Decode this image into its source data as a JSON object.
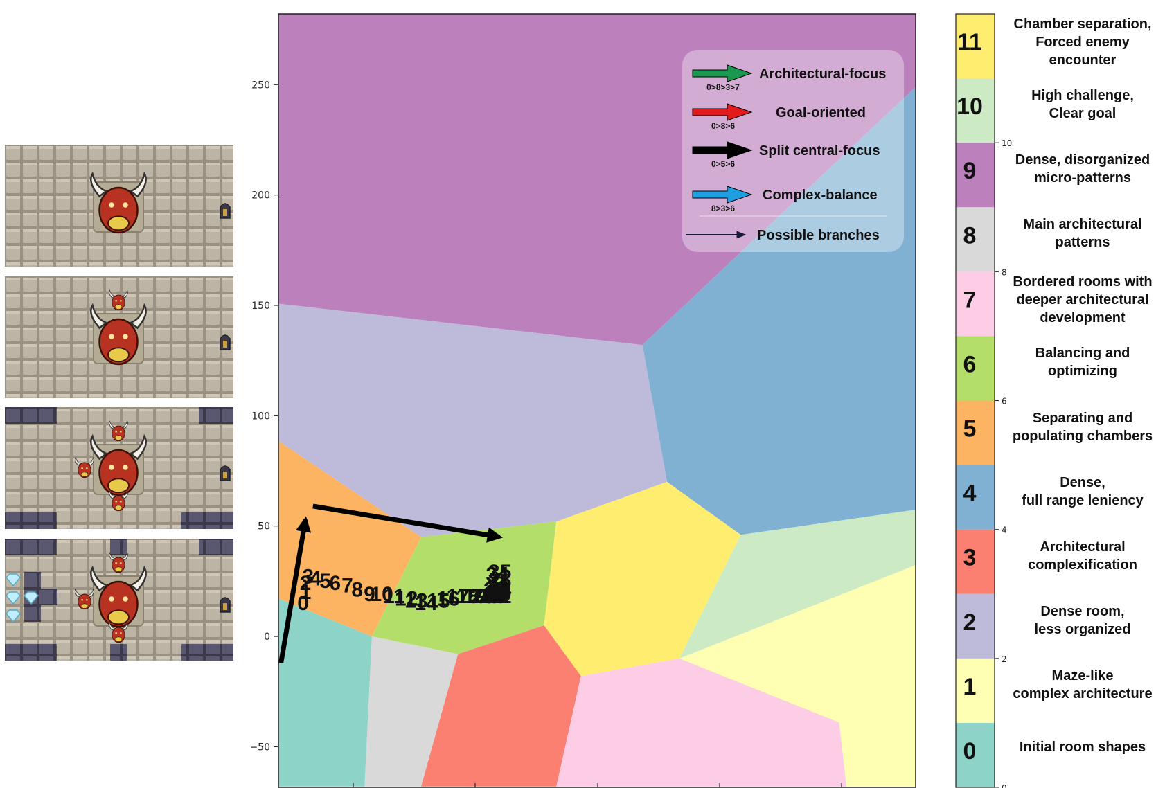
{
  "colors": {
    "cluster": [
      "#8dd3c7",
      "#ffffb3",
      "#bebada",
      "#fb8072",
      "#80b1d3",
      "#fdb462",
      "#b3de69",
      "#fccde5",
      "#d9d9d9",
      "#bc80bd",
      "#ccebc5",
      "#ffed6f"
    ],
    "arrows": {
      "architectural": "#1a9850",
      "goal": "#e31a1c",
      "split": "#000000",
      "complex": "#1f9ee0",
      "branch": "#1a1a3a"
    }
  },
  "thumbnails": [
    {
      "icons": [
        "boss-minotaur",
        "exit-door"
      ]
    },
    {
      "icons": [
        "boss-minotaur",
        "minotaur-enemy",
        "exit-door"
      ]
    },
    {
      "icons": [
        "boss-minotaur",
        "minotaur-enemy",
        "minotaur-enemy",
        "minotaur-enemy",
        "exit-door",
        "wall-blocks"
      ]
    },
    {
      "icons": [
        "boss-minotaur",
        "minotaur-enemy",
        "minotaur-enemy",
        "minotaur-enemy",
        "exit-door",
        "wall-blocks",
        "diamond-gem"
      ]
    }
  ],
  "chart_data": {
    "type": "scatter",
    "y_ticks": [
      "250",
      "200",
      "150",
      "100",
      "50",
      "0",
      "−50"
    ],
    "ylim": [
      -68,
      283
    ],
    "regions": [
      {
        "cluster": 9,
        "polygon": [
          [
            -20,
            283
          ],
          [
            245,
            283
          ],
          [
            245,
            253
          ],
          [
            130,
            132
          ],
          [
            -20,
            151
          ]
        ]
      },
      {
        "cluster": 4,
        "polygon": [
          [
            130,
            132
          ],
          [
            245,
            253
          ],
          [
            245,
            58
          ],
          [
            170,
            46
          ],
          [
            140,
            70
          ]
        ]
      },
      {
        "cluster": 2,
        "polygon": [
          [
            -20,
            151
          ],
          [
            130,
            132
          ],
          [
            140,
            70
          ],
          [
            95,
            52
          ],
          [
            40,
            45
          ],
          [
            -20,
            90
          ]
        ]
      },
      {
        "cluster": 5,
        "polygon": [
          [
            -20,
            90
          ],
          [
            40,
            45
          ],
          [
            20,
            0
          ],
          [
            -20,
            18
          ]
        ]
      },
      {
        "cluster": 6,
        "polygon": [
          [
            40,
            45
          ],
          [
            95,
            52
          ],
          [
            90,
            5
          ],
          [
            55,
            -8
          ],
          [
            20,
            0
          ]
        ]
      },
      {
        "cluster": 11,
        "polygon": [
          [
            95,
            52
          ],
          [
            140,
            70
          ],
          [
            170,
            46
          ],
          [
            145,
            -10
          ],
          [
            105,
            -18
          ],
          [
            90,
            5
          ]
        ]
      },
      {
        "cluster": 10,
        "polygon": [
          [
            170,
            46
          ],
          [
            245,
            58
          ],
          [
            245,
            34
          ],
          [
            210,
            -39
          ],
          [
            145,
            -10
          ]
        ]
      },
      {
        "cluster": 0,
        "polygon": [
          [
            -20,
            18
          ],
          [
            20,
            0
          ],
          [
            17,
            -68
          ],
          [
            -20,
            -68
          ]
        ]
      },
      {
        "cluster": 8,
        "polygon": [
          [
            20,
            0
          ],
          [
            55,
            -8
          ],
          [
            40,
            -68
          ],
          [
            17,
            -68
          ]
        ]
      },
      {
        "cluster": 3,
        "polygon": [
          [
            55,
            -8
          ],
          [
            90,
            5
          ],
          [
            105,
            -18
          ],
          [
            95,
            -68
          ],
          [
            40,
            -68
          ]
        ]
      },
      {
        "cluster": 7,
        "polygon": [
          [
            105,
            -18
          ],
          [
            145,
            -10
          ],
          [
            210,
            -39
          ],
          [
            213,
            -68
          ],
          [
            95,
            -68
          ]
        ]
      },
      {
        "cluster": 1,
        "polygon": [
          [
            145,
            -10
          ],
          [
            245,
            34
          ],
          [
            245,
            -68
          ],
          [
            213,
            -68
          ],
          [
            210,
            -39
          ]
        ]
      }
    ],
    "point_labels": [
      {
        "t": "0",
        "x": -8,
        "y": 12
      },
      {
        "t": "1",
        "x": -7,
        "y": 17
      },
      {
        "t": "2",
        "x": -7,
        "y": 21
      },
      {
        "t": "3",
        "x": -6,
        "y": 24
      },
      {
        "t": "4",
        "x": -3,
        "y": 23
      },
      {
        "t": "5",
        "x": 1,
        "y": 22
      },
      {
        "t": "6",
        "x": 5,
        "y": 21
      },
      {
        "t": "7",
        "x": 10,
        "y": 20
      },
      {
        "t": "8",
        "x": 14,
        "y": 18
      },
      {
        "t": "9",
        "x": 19,
        "y": 16
      },
      {
        "t": "10",
        "x": 24,
        "y": 16
      },
      {
        "t": "11",
        "x": 29,
        "y": 15
      },
      {
        "t": "12",
        "x": 34,
        "y": 14
      },
      {
        "t": "13",
        "x": 38,
        "y": 13
      },
      {
        "t": "14",
        "x": 42,
        "y": 12
      },
      {
        "t": "15",
        "x": 47,
        "y": 13
      },
      {
        "t": "16",
        "x": 51,
        "y": 14
      },
      {
        "t": "17",
        "x": 55,
        "y": 15
      },
      {
        "t": "18",
        "x": 59,
        "y": 15
      },
      {
        "t": "19",
        "x": 62,
        "y": 15
      },
      {
        "t": "20",
        "x": 65,
        "y": 15
      },
      {
        "t": "21",
        "x": 68,
        "y": 15
      },
      {
        "t": "22",
        "x": 70,
        "y": 16
      },
      {
        "t": "23",
        "x": 71,
        "y": 17
      },
      {
        "t": "24",
        "x": 72,
        "y": 18
      },
      {
        "t": "25",
        "x": 72,
        "y": 22
      },
      {
        "t": "26",
        "x": 71,
        "y": 19
      },
      {
        "t": "27",
        "x": 70,
        "y": 18
      },
      {
        "t": "28",
        "x": 71,
        "y": 17
      },
      {
        "t": "29",
        "x": 72,
        "y": 16
      },
      {
        "t": "30",
        "x": 70,
        "y": 15
      },
      {
        "t": "31",
        "x": 72,
        "y": 15
      },
      {
        "t": "32",
        "x": 71,
        "y": 16
      },
      {
        "t": "33",
        "x": 72,
        "y": 17
      },
      {
        "t": "34",
        "x": 71,
        "y": 25
      },
      {
        "t": "35",
        "x": 72,
        "y": 26
      }
    ],
    "trajectory_arrows": [
      {
        "from": [
          -17,
          -12
        ],
        "to": [
          -7,
          53
        ]
      },
      {
        "from": [
          -4,
          59
        ],
        "to": [
          72,
          45
        ]
      }
    ],
    "legend": [
      {
        "label": "Architectural-focus",
        "path": "0>8>3>7",
        "color_key": "architectural"
      },
      {
        "label": "Goal-oriented",
        "path": "0>8>6",
        "color_key": "goal"
      },
      {
        "label": "Split central-focus",
        "path": "0>5>6",
        "color_key": "split"
      },
      {
        "label": "Complex-balance",
        "path": "8>3>6",
        "color_key": "complex"
      },
      {
        "label": "Possible branches",
        "path": "",
        "color_key": "branch"
      }
    ],
    "colorbar": {
      "ticks": [
        "0",
        "2",
        "4",
        "6",
        "8",
        "10"
      ],
      "clusters": [
        {
          "id": "0",
          "desc": [
            "Initial room shapes"
          ]
        },
        {
          "id": "1",
          "desc": [
            "Maze-like",
            "complex architecture"
          ]
        },
        {
          "id": "2",
          "desc": [
            "Dense room,",
            "less organized"
          ]
        },
        {
          "id": "3",
          "desc": [
            "Architectural",
            "complexification"
          ]
        },
        {
          "id": "4",
          "desc": [
            "Dense,",
            "full range leniency"
          ]
        },
        {
          "id": "5",
          "desc": [
            "Separating and",
            "populating chambers"
          ]
        },
        {
          "id": "6",
          "desc": [
            "Balancing and",
            "optimizing"
          ]
        },
        {
          "id": "7",
          "desc": [
            "Bordered rooms with",
            "deeper architectural",
            "development"
          ]
        },
        {
          "id": "8",
          "desc": [
            "Main architectural",
            "patterns"
          ]
        },
        {
          "id": "9",
          "desc": [
            "Dense, disorganized",
            "micro-patterns"
          ]
        },
        {
          "id": "10",
          "desc": [
            "High challenge,",
            "Clear goal"
          ]
        },
        {
          "id": "11",
          "desc": [
            "Chamber separation,",
            "Forced enemy",
            "encounter"
          ]
        }
      ]
    }
  }
}
